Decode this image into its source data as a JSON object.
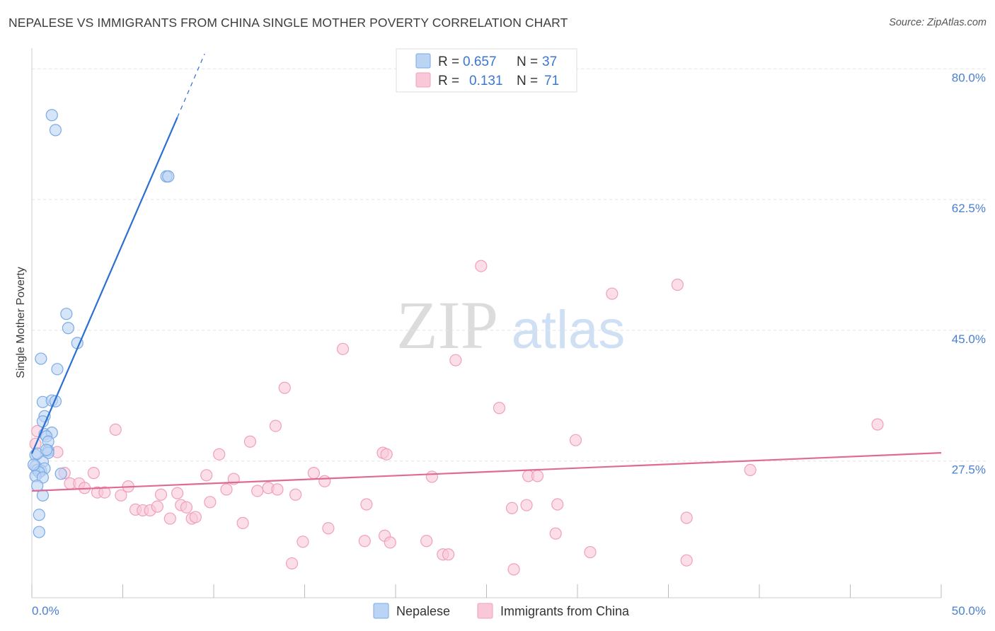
{
  "title": "NEPALESE VS IMMIGRANTS FROM CHINA SINGLE MOTHER POVERTY CORRELATION CHART",
  "source": "Source: ZipAtlas.com",
  "watermark": {
    "left": "ZIP",
    "right": "atlas"
  },
  "chart_data": {
    "type": "scatter",
    "title": "NEPALESE VS IMMIGRANTS FROM CHINA SINGLE MOTHER POVERTY CORRELATION CHART",
    "xlabel": "",
    "ylabel": "Single Mother Poverty",
    "xlim": [
      0,
      50
    ],
    "ylim": [
      9.2,
      82.3
    ],
    "x_tick_labels": [
      "0.0%",
      "50.0%"
    ],
    "y_ticks": [
      27.5,
      45.0,
      62.5,
      80.0
    ],
    "y_tick_labels": [
      "27.5%",
      "45.0%",
      "62.5%",
      "80.0%"
    ],
    "grid": true,
    "legend": {
      "placement": "top-center",
      "entries": [
        {
          "r_label": "R =",
          "r": "0.657",
          "n_label": "N =",
          "n": "37"
        },
        {
          "r_label": "R =",
          "r": "0.131",
          "n_label": "N =",
          "n": "71"
        }
      ]
    },
    "series": [
      {
        "name": "Nepalese",
        "color": "#7aaae8",
        "fill": "#bcd4f4",
        "line_color": "#2c6fce",
        "trend": {
          "x0": 0.0,
          "y0": 28.5,
          "x1": 8.0,
          "y1": 73.5,
          "dash_to_x": 9.5,
          "dash_to_y": 82.0
        },
        "points": [
          [
            1.1,
            73.8
          ],
          [
            1.3,
            71.8
          ],
          [
            7.4,
            65.6
          ],
          [
            7.5,
            65.6
          ],
          [
            1.9,
            47.2
          ],
          [
            2.0,
            45.3
          ],
          [
            2.5,
            43.3
          ],
          [
            0.5,
            41.2
          ],
          [
            1.4,
            39.8
          ],
          [
            0.6,
            35.4
          ],
          [
            1.1,
            35.6
          ],
          [
            1.3,
            35.5
          ],
          [
            0.7,
            33.5
          ],
          [
            0.6,
            32.8
          ],
          [
            0.7,
            31.1
          ],
          [
            1.1,
            31.3
          ],
          [
            0.8,
            30.8
          ],
          [
            0.9,
            30.1
          ],
          [
            0.9,
            28.9
          ],
          [
            0.9,
            28.6
          ],
          [
            0.2,
            28.3
          ],
          [
            0.6,
            27.4
          ],
          [
            0.2,
            26.8
          ],
          [
            0.3,
            26.3
          ],
          [
            0.5,
            26.2
          ],
          [
            0.7,
            26.5
          ],
          [
            0.4,
            26.0
          ],
          [
            1.6,
            25.8
          ],
          [
            0.2,
            25.5
          ],
          [
            0.6,
            25.3
          ],
          [
            0.3,
            24.2
          ],
          [
            0.6,
            22.9
          ],
          [
            0.4,
            20.3
          ],
          [
            0.4,
            18.0
          ],
          [
            0.1,
            27.0
          ],
          [
            0.3,
            28.5
          ],
          [
            0.8,
            29.0
          ]
        ]
      },
      {
        "name": "Immigrants from China",
        "color": "#f0a0ba",
        "fill": "#f9c8d8",
        "line_color": "#e06a95",
        "trend": {
          "x0": 0.0,
          "y0": 23.5,
          "x1": 50.0,
          "y1": 28.6
        },
        "points": [
          [
            24.7,
            53.6
          ],
          [
            31.9,
            49.9
          ],
          [
            35.5,
            51.1
          ],
          [
            17.1,
            42.5
          ],
          [
            23.3,
            41.0
          ],
          [
            13.9,
            37.3
          ],
          [
            25.7,
            34.6
          ],
          [
            46.5,
            32.4
          ],
          [
            13.4,
            32.2
          ],
          [
            4.6,
            31.7
          ],
          [
            12.0,
            30.1
          ],
          [
            29.9,
            30.3
          ],
          [
            10.3,
            28.4
          ],
          [
            19.3,
            28.6
          ],
          [
            19.5,
            28.4
          ],
          [
            1.4,
            28.7
          ],
          [
            1.8,
            25.9
          ],
          [
            3.4,
            25.9
          ],
          [
            9.6,
            25.6
          ],
          [
            11.1,
            25.1
          ],
          [
            15.5,
            25.9
          ],
          [
            16.1,
            24.8
          ],
          [
            22.0,
            25.4
          ],
          [
            27.3,
            25.5
          ],
          [
            27.8,
            25.5
          ],
          [
            39.5,
            26.3
          ],
          [
            2.1,
            24.5
          ],
          [
            2.6,
            24.5
          ],
          [
            2.9,
            23.9
          ],
          [
            3.6,
            23.3
          ],
          [
            4.0,
            23.3
          ],
          [
            4.9,
            22.9
          ],
          [
            5.3,
            24.1
          ],
          [
            7.1,
            23.0
          ],
          [
            8.0,
            23.2
          ],
          [
            10.7,
            23.7
          ],
          [
            12.4,
            23.5
          ],
          [
            13.0,
            23.9
          ],
          [
            13.5,
            23.7
          ],
          [
            14.5,
            23.0
          ],
          [
            5.7,
            21.0
          ],
          [
            6.1,
            20.9
          ],
          [
            6.5,
            20.9
          ],
          [
            6.9,
            21.4
          ],
          [
            7.6,
            19.8
          ],
          [
            8.2,
            21.6
          ],
          [
            8.5,
            21.3
          ],
          [
            8.8,
            19.8
          ],
          [
            9.0,
            20.0
          ],
          [
            9.8,
            22.0
          ],
          [
            18.4,
            21.7
          ],
          [
            26.4,
            21.2
          ],
          [
            27.2,
            21.6
          ],
          [
            28.9,
            21.7
          ],
          [
            36.0,
            19.9
          ],
          [
            11.6,
            19.2
          ],
          [
            16.3,
            18.5
          ],
          [
            18.3,
            16.8
          ],
          [
            19.4,
            17.5
          ],
          [
            19.7,
            16.6
          ],
          [
            21.7,
            16.8
          ],
          [
            14.9,
            16.7
          ],
          [
            28.8,
            17.8
          ],
          [
            22.6,
            15.0
          ],
          [
            22.9,
            15.0
          ],
          [
            30.7,
            15.3
          ],
          [
            14.3,
            13.8
          ],
          [
            26.5,
            13.0
          ],
          [
            36.0,
            14.2
          ],
          [
            0.3,
            31.5
          ],
          [
            0.2,
            29.8
          ]
        ]
      }
    ]
  }
}
